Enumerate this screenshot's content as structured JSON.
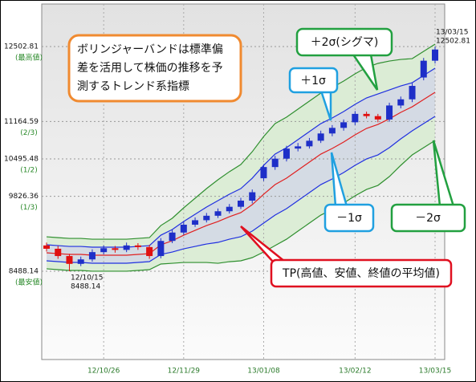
{
  "chart_data": {
    "type": "candlestick",
    "categories": [
      null,
      null,
      null,
      null,
      null,
      "12/10/26",
      null,
      null,
      null,
      null,
      null,
      null,
      "12/11/29",
      null,
      null,
      null,
      null,
      null,
      null,
      "13/01/08",
      null,
      null,
      null,
      null,
      null,
      null,
      null,
      "13/02/12",
      null,
      null,
      null,
      null,
      null,
      null,
      "13/03/15"
    ],
    "open": [
      8950,
      8890,
      8760,
      8620,
      8700,
      8830,
      8900,
      8870,
      8950,
      8920,
      8760,
      9030,
      9180,
      9320,
      9400,
      9480,
      9560,
      9640,
      9750,
      10150,
      10350,
      10500,
      10680,
      10720,
      10820,
      10950,
      11050,
      11150,
      11300,
      11260,
      11200,
      11450,
      11560,
      11950,
      12250
    ],
    "high": [
      9000,
      8940,
      8800,
      8750,
      8880,
      8950,
      8940,
      9000,
      8990,
      8960,
      9080,
      9230,
      9370,
      9450,
      9530,
      9610,
      9690,
      9800,
      9950,
      10400,
      10550,
      10730,
      10780,
      10870,
      11000,
      11100,
      11200,
      11350,
      11340,
      11300,
      11500,
      11610,
      11850,
      12300,
      12502.81
    ],
    "low": [
      8840,
      8710,
      8488.14,
      8580,
      8660,
      8790,
      8820,
      8830,
      8870,
      8710,
      8720,
      8990,
      9140,
      9280,
      9360,
      9440,
      9520,
      9600,
      9700,
      10100,
      10300,
      10450,
      10630,
      10680,
      10780,
      10900,
      11000,
      11100,
      11220,
      11150,
      11160,
      11400,
      11510,
      11900,
      12200
    ],
    "close": [
      8890,
      8760,
      8620,
      8700,
      8830,
      8900,
      8870,
      8950,
      8920,
      8760,
      9030,
      9180,
      9320,
      9400,
      9480,
      9560,
      9640,
      9750,
      9900,
      10350,
      10500,
      10680,
      10720,
      10820,
      10950,
      11050,
      11150,
      11300,
      11260,
      11200,
      11450,
      11560,
      11800,
      12250,
      12450
    ],
    "up_color": "#1e2fc8",
    "down_color": "#e01010",
    "bands": [
      {
        "color": "#2f8f2f",
        "values": [
          9104,
          9089,
          9075,
          9075,
          9061,
          9061,
          9061,
          9061,
          9075,
          9089,
          9305,
          9435,
          9621,
          9793,
          9965,
          10123,
          10267,
          10395,
          10624,
          10896,
          11127,
          11241,
          11385,
          11528,
          11671,
          11772,
          11887,
          12016,
          12130,
          12202,
          12244,
          12273,
          12287,
          12417,
          12546
        ]
      },
      {
        "color": "#2030e0",
        "values": [
          8961,
          8946,
          8932,
          8932,
          8918,
          8918,
          8918,
          8918,
          8932,
          8946,
          9133,
          9234,
          9377,
          9506,
          9635,
          9750,
          9865,
          9965,
          10151,
          10380,
          10582,
          10696,
          10840,
          10983,
          11126,
          11227,
          11342,
          11471,
          11585,
          11657,
          11728,
          11800,
          11857,
          11987,
          12116
        ]
      },
      {
        "color": "#e02020",
        "values": [
          8818,
          8803,
          8789,
          8789,
          8775,
          8775,
          8775,
          8775,
          8789,
          8803,
          8961,
          9033,
          9133,
          9219,
          9305,
          9377,
          9463,
          9535,
          9678,
          9864,
          10037,
          10151,
          10295,
          10438,
          10581,
          10682,
          10797,
          10926,
          11040,
          11112,
          11212,
          11327,
          11427,
          11557,
          11686
        ]
      },
      {
        "color": "#2030e0",
        "values": [
          8675,
          8660,
          8646,
          8646,
          8632,
          8632,
          8632,
          8632,
          8646,
          8660,
          8789,
          8832,
          8889,
          8932,
          8975,
          9004,
          9061,
          9105,
          9205,
          9348,
          9492,
          9606,
          9750,
          9893,
          10036,
          10137,
          10252,
          10381,
          10495,
          10567,
          10696,
          10854,
          10997,
          11127,
          11256
        ]
      },
      {
        "color": "#2f8f2f",
        "values": [
          8532,
          8517,
          8503,
          8503,
          8489,
          8489,
          8489,
          8489,
          8503,
          8517,
          8617,
          8631,
          8645,
          8645,
          8645,
          8631,
          8659,
          8675,
          8732,
          8832,
          8947,
          9061,
          9205,
          9348,
          9491,
          9592,
          9707,
          9836,
          9950,
          10022,
          10180,
          10381,
          10567,
          10697,
          10826
        ]
      }
    ],
    "ylim": [
      6911,
      13263
    ],
    "yticks": [
      8488.14,
      9826.36,
      10495.48,
      11164.59,
      12502.81
    ],
    "ytick_sublabels": [
      "(最安値)",
      "(1/3)",
      "(1/2)",
      "(2/3)",
      "(最高値)"
    ],
    "grid": true,
    "point_labels": [
      "12/10/15",
      "13/03/15"
    ],
    "description": [
      "ボリンジャーバンドは標準偏",
      "差を活用して株価の推移を予",
      "測するトレンド系指標"
    ],
    "annotations": [
      "＋2σ(シグマ)",
      "＋1σ",
      "－1σ",
      "－2σ",
      "TP(高値、安値、終値の平均値)"
    ]
  }
}
